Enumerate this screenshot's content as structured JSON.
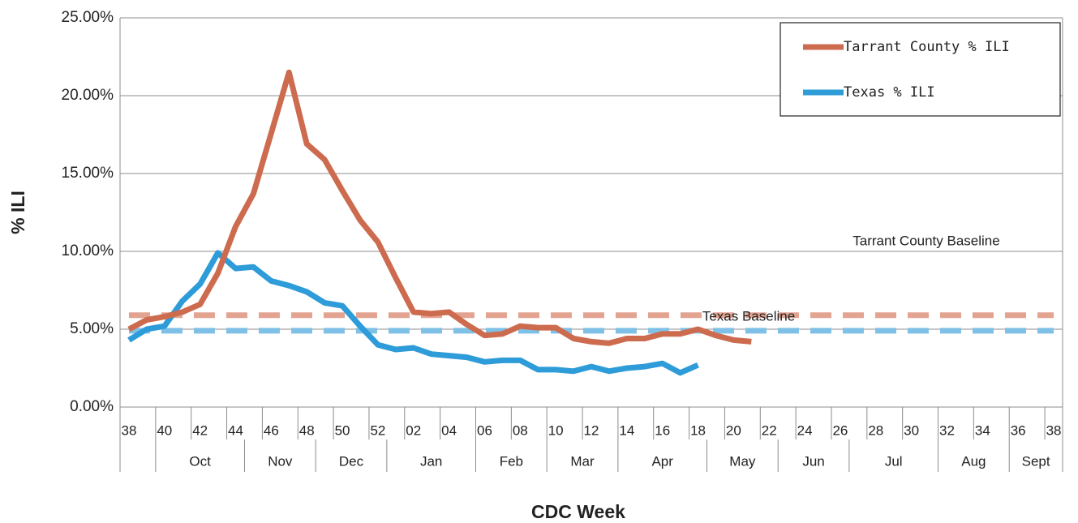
{
  "chart_data": {
    "type": "line",
    "x_label": "CDC Week",
    "y_label": "% ILI",
    "categories": [
      "38",
      null,
      "40",
      null,
      "42",
      null,
      "44",
      null,
      "46",
      null,
      "48",
      null,
      "50",
      null,
      "52",
      null,
      "02",
      null,
      "04",
      null,
      "06",
      null,
      "08",
      null,
      "10",
      null,
      "12",
      null,
      "14",
      null,
      "16",
      null,
      "18",
      null,
      "20",
      null,
      "22",
      null,
      "24",
      null,
      "26",
      null,
      "28",
      null,
      "30",
      null,
      "32",
      null,
      "34",
      null,
      "36",
      null,
      "38"
    ],
    "category_groups": [
      {
        "label": null,
        "span": 2
      },
      {
        "label": "Oct",
        "span": 5
      },
      {
        "label": "Nov",
        "span": 4
      },
      {
        "label": "Dec",
        "span": 4
      },
      {
        "label": "Jan",
        "span": 5
      },
      {
        "label": "Feb",
        "span": 4
      },
      {
        "label": "Mar",
        "span": 4
      },
      {
        "label": "Apr",
        "span": 5
      },
      {
        "label": "May",
        "span": 4
      },
      {
        "label": "Jun",
        "span": 4
      },
      {
        "label": "Jul",
        "span": 5
      },
      {
        "label": "Aug",
        "span": 4
      },
      {
        "label": "Sept",
        "span": 3
      }
    ],
    "series": [
      {
        "name": "Tarrant County % ILI",
        "color": "#cd6b4f",
        "values": [
          5.0,
          5.6,
          5.8,
          6.1,
          6.6,
          8.6,
          11.6,
          13.7,
          17.6,
          21.5,
          16.9,
          15.9,
          13.9,
          12.0,
          10.6,
          8.3,
          6.1,
          6.0,
          6.1,
          5.3,
          4.6,
          4.7,
          5.2,
          5.1,
          5.1,
          4.4,
          4.2,
          4.1,
          4.4,
          4.4,
          4.7,
          4.7,
          5.0,
          4.6,
          4.3,
          4.2,
          null,
          null,
          null,
          null,
          null,
          null,
          null,
          null,
          null,
          null,
          null,
          null,
          null,
          null,
          null,
          null,
          null
        ]
      },
      {
        "name": "Texas % ILI",
        "color": "#2e9cd8",
        "values": [
          4.3,
          5.0,
          5.2,
          6.8,
          7.9,
          9.9,
          8.9,
          9.0,
          8.1,
          7.8,
          7.4,
          6.7,
          6.5,
          5.2,
          4.0,
          3.7,
          3.8,
          3.4,
          3.3,
          3.2,
          2.9,
          3.0,
          3.0,
          2.4,
          2.4,
          2.3,
          2.6,
          2.3,
          2.5,
          2.6,
          2.8,
          2.2,
          2.7,
          null,
          null,
          null,
          null,
          null,
          null,
          null,
          null,
          null,
          null,
          null,
          null,
          null,
          null,
          null,
          null,
          null,
          null,
          null,
          null
        ]
      }
    ],
    "baselines": [
      {
        "label": "Tarrant County Baseline",
        "value": 5.9,
        "color": "#e2a491"
      },
      {
        "label": "Texas Baseline",
        "value": 4.9,
        "color": "#7fc0e6"
      }
    ],
    "ylim": [
      0,
      25
    ],
    "yticks": [
      {
        "value": 0,
        "label": "0.00%"
      },
      {
        "value": 5,
        "label": "5.00%"
      },
      {
        "value": 10,
        "label": "10.00%"
      },
      {
        "value": 15,
        "label": "15.00%"
      },
      {
        "value": 20,
        "label": "20.00%"
      },
      {
        "value": 25,
        "label": "25.00%"
      }
    ],
    "grid": true,
    "legend": "top-right"
  }
}
